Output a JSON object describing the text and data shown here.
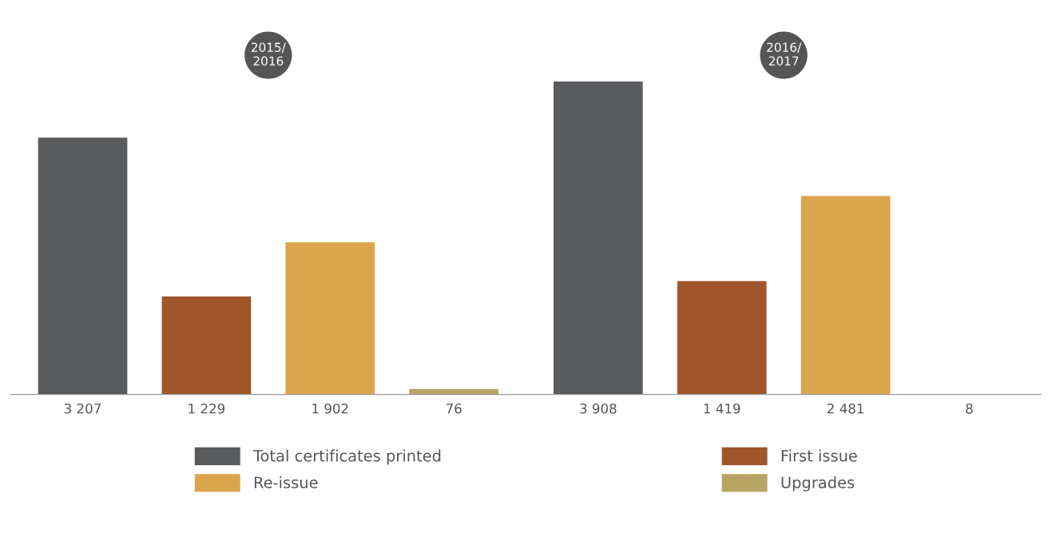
{
  "chart_data": {
    "type": "bar",
    "categories": [
      "2015/\n2016",
      "2016/\n2017"
    ],
    "series": [
      {
        "name": "Total certificates printed",
        "color": "#5a5b5d",
        "values": [
          3207,
          3908
        ],
        "value_labels": [
          "3 207",
          "3 908"
        ]
      },
      {
        "name": "First issue",
        "color": "#a0562a",
        "values": [
          1229,
          1419
        ],
        "value_labels": [
          "1 229",
          "1 419"
        ]
      },
      {
        "name": "Re-issue",
        "color": "#dba54e",
        "values": [
          1902,
          2481
        ],
        "value_labels": [
          "1 902",
          "2 481"
        ]
      },
      {
        "name": "Upgrades",
        "color": "#b8a464",
        "values": [
          76,
          8
        ],
        "value_labels": [
          "76",
          "8"
        ]
      }
    ],
    "legend": "bottom"
  }
}
